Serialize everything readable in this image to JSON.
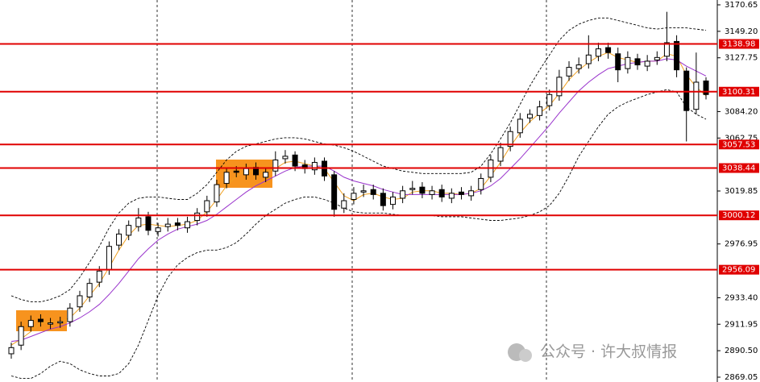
{
  "chart_data": {
    "type": "candlestick",
    "up_color": "#ffffff",
    "down_color": "#000000",
    "wick_color": "#000000",
    "ylim": [
      2865.13,
      3174.57
    ],
    "yticks": [
      3170.65,
      {
        "value": 3149.2,
        "label": "3149.20"
      },
      3127.75,
      {
        "value": 3084.2,
        "label": "3084.20"
      },
      3062.75,
      3019.85,
      2976.95,
      {
        "value": 2933.4,
        "label": "2933.40"
      },
      2911.95,
      {
        "value": 2890.5,
        "label": "2890.50"
      },
      2869.05
    ],
    "levels": [
      3138.98,
      3100.31,
      3057.53,
      3038.44,
      3000.12,
      2956.09
    ],
    "level_color": "#e00000",
    "open": [
      2888,
      2895,
      2910,
      2916,
      2912,
      2913,
      2914,
      2926,
      2934,
      2946,
      2956,
      2976,
      2984,
      2991,
      2999,
      2987,
      2991,
      2994,
      2990,
      2996,
      3003,
      3011,
      3026,
      3036,
      3033,
      3039,
      3031,
      3036,
      3046,
      3049,
      3041,
      3037,
      3044,
      3033,
      3006,
      3013,
      3019,
      3021,
      3018,
      3009,
      3014,
      3021,
      3023,
      3017,
      3021,
      3014,
      3019,
      3016,
      3021,
      3031,
      3044,
      3056,
      3067,
      3079,
      3081,
      3089,
      3097,
      3113,
      3119,
      3123,
      3129,
      3136,
      3131,
      3119,
      3127,
      3121,
      3126,
      3129,
      3141,
      3117,
      3086,
      3109
    ],
    "high": [
      2897,
      2914,
      2919,
      2920,
      2917,
      2918,
      2929,
      2939,
      2949,
      2959,
      2979,
      2989,
      2996,
      3006,
      3003,
      2994,
      2998,
      2998,
      2999,
      3006,
      3016,
      3029,
      3039,
      3040,
      3042,
      3043,
      3039,
      3052,
      3053,
      3052,
      3045,
      3047,
      3047,
      3036,
      3018,
      3023,
      3025,
      3025,
      3022,
      3019,
      3024,
      3028,
      3027,
      3024,
      3025,
      3022,
      3023,
      3024,
      3034,
      3049,
      3059,
      3072,
      3083,
      3086,
      3093,
      3102,
      3118,
      3125,
      3128,
      3146,
      3140,
      3140,
      3136,
      3133,
      3131,
      3130,
      3133,
      3165,
      3146,
      3120,
      3132,
      3112
    ],
    "low": [
      2884,
      2891,
      2906,
      2910,
      2908,
      2909,
      2910,
      2922,
      2930,
      2942,
      2952,
      2972,
      2980,
      2987,
      2984,
      2983,
      2987,
      2988,
      2986,
      2992,
      2999,
      3007,
      3022,
      3031,
      3029,
      3029,
      3027,
      3032,
      3042,
      3036,
      3034,
      3033,
      3028,
      2999,
      3002,
      3009,
      3015,
      3013,
      3004,
      3005,
      3010,
      3017,
      3014,
      3013,
      3011,
      3010,
      3013,
      3012,
      3017,
      3027,
      3040,
      3052,
      3063,
      3075,
      3077,
      3085,
      3093,
      3109,
      3115,
      3119,
      3125,
      3127,
      3108,
      3115,
      3118,
      3117,
      3122,
      3125,
      3112,
      3060,
      3082,
      3094
    ],
    "close": [
      2893,
      2910,
      2915,
      2914,
      2913,
      2914,
      2925,
      2935,
      2945,
      2955,
      2975,
      2985,
      2992,
      2998,
      2988,
      2990,
      2993,
      2992,
      2995,
      3002,
      3012,
      3025,
      3035,
      3035,
      3038,
      3033,
      3035,
      3045,
      3048,
      3040,
      3038,
      3043,
      3032,
      3005,
      3012,
      3018,
      3020,
      3017,
      3008,
      3015,
      3020,
      3022,
      3018,
      3020,
      3015,
      3018,
      3017,
      3020,
      3030,
      3045,
      3055,
      3068,
      3078,
      3082,
      3088,
      3098,
      3112,
      3120,
      3122,
      3130,
      3135,
      3132,
      3118,
      3128,
      3122,
      3125,
      3128,
      3140,
      3118,
      3085,
      3108,
      3098
    ],
    "series": [
      {
        "color": "#f0a020",
        "dash": false,
        "values": [
          2895,
          2900,
          2906,
          2913,
          2914,
          2914,
          2917,
          2925,
          2935,
          2945,
          2958,
          2972,
          2984,
          2992,
          2993,
          2992,
          2991,
          2992,
          2993,
          2996,
          3003,
          3013,
          3024,
          3032,
          3036,
          3035,
          3035,
          3038,
          3043,
          3044,
          3042,
          3040,
          3038,
          3027,
          3016,
          3012,
          3017,
          3018,
          3015,
          3013,
          3014,
          3019,
          3020,
          3020,
          3018,
          3018,
          3017,
          3018,
          3022,
          3032,
          3043,
          3056,
          3067,
          3076,
          3083,
          3089,
          3099,
          3110,
          3118,
          3124,
          3129,
          3132,
          3128,
          3126,
          3124,
          3125,
          3125,
          3131,
          3129,
          3114,
          3104,
          3097
        ]
      },
      {
        "color": "#9933cc",
        "dash": false,
        "values": [
          2898,
          2899,
          2902,
          2905,
          2908,
          2910,
          2913,
          2917,
          2922,
          2928,
          2936,
          2945,
          2955,
          2965,
          2973,
          2980,
          2985,
          2989,
          2991,
          2993,
          2996,
          3001,
          3007,
          3013,
          3019,
          3024,
          3028,
          3032,
          3036,
          3039,
          3040,
          3040,
          3040,
          3036,
          3031,
          3028,
          3026,
          3024,
          3021,
          3019,
          3017,
          3017,
          3017,
          3017,
          3017,
          3017,
          3017,
          3018,
          3020,
          3024,
          3030,
          3038,
          3046,
          3055,
          3064,
          3073,
          3083,
          3092,
          3101,
          3108,
          3114,
          3119,
          3121,
          3123,
          3124,
          3125,
          3125,
          3127,
          3126,
          3121,
          3117,
          3113
        ]
      },
      {
        "color": "#000000",
        "dash": true,
        "values": [
          2935,
          2932,
          2930,
          2930,
          2932,
          2935,
          2940,
          2950,
          2962,
          2975,
          2990,
          3002,
          3010,
          3014,
          3015,
          3015,
          3014,
          3013,
          3013,
          3018,
          3025,
          3035,
          3045,
          3052,
          3056,
          3058,
          3060,
          3062,
          3063,
          3063,
          3062,
          3060,
          3058,
          3057,
          3055,
          3052,
          3048,
          3044,
          3040,
          3038,
          3036,
          3035,
          3034,
          3034,
          3034,
          3034,
          3034,
          3035,
          3040,
          3050,
          3062,
          3075,
          3090,
          3105,
          3118,
          3130,
          3142,
          3150,
          3155,
          3158,
          3160,
          3160,
          3158,
          3156,
          3154,
          3152,
          3151,
          3152,
          3152,
          3152,
          3151,
          3150
        ]
      },
      {
        "color": "#000000",
        "dash": true,
        "values": [
          2870,
          2868,
          2868,
          2872,
          2878,
          2882,
          2880,
          2875,
          2872,
          2870,
          2870,
          2872,
          2880,
          2895,
          2915,
          2935,
          2950,
          2960,
          2966,
          2970,
          2972,
          2972,
          2974,
          2978,
          2985,
          2993,
          3000,
          3005,
          3010,
          3013,
          3015,
          3015,
          3013,
          3010,
          3006,
          3003,
          3002,
          3002,
          3002,
          3001,
          3000,
          3000,
          3000,
          3000,
          2999,
          2999,
          2999,
          2998,
          2997,
          2996,
          2996,
          2997,
          2998,
          3000,
          3003,
          3008,
          3018,
          3032,
          3048,
          3060,
          3072,
          3082,
          3088,
          3092,
          3095,
          3098,
          3100,
          3102,
          3100,
          3088,
          3082,
          3078
        ]
      }
    ],
    "watermark": "公众号 · 许大叔情报"
  }
}
